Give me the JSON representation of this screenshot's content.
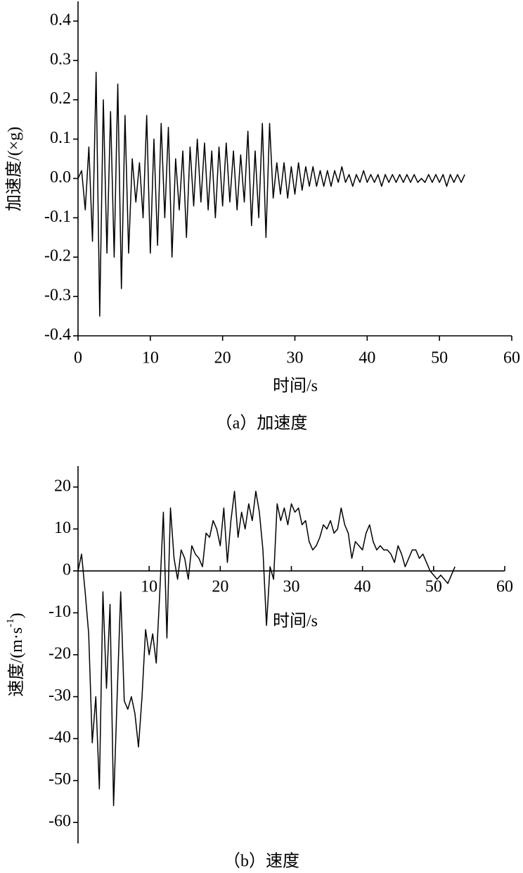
{
  "chart_data": [
    {
      "type": "line",
      "caption": "（a）加速度",
      "xlabel": "时间/s",
      "ylabel": "加速度/(×g)",
      "color": "#000000",
      "xaxis_position": "bottom",
      "xlim": [
        0,
        60
      ],
      "ylim": [
        -0.4,
        0.45
      ],
      "xticks": [
        0,
        10,
        20,
        30,
        40,
        50,
        60
      ],
      "yticks": [
        -0.4,
        -0.3,
        -0.2,
        -0.1,
        {
          "value": 0,
          "label": "0.0"
        },
        0.1,
        0.2,
        0.3,
        0.4
      ],
      "x": [
        0,
        0.5,
        1,
        1.5,
        2,
        2.5,
        3,
        3.5,
        4,
        4.5,
        5,
        5.5,
        6,
        6.5,
        7,
        7.5,
        8,
        8.5,
        9,
        9.5,
        10,
        10.5,
        11,
        11.5,
        12,
        12.5,
        13,
        13.5,
        14,
        14.5,
        15,
        15.5,
        16,
        16.5,
        17,
        17.5,
        18,
        18.5,
        19,
        19.5,
        20,
        20.5,
        21,
        21.5,
        22,
        22.5,
        23,
        23.5,
        24,
        24.5,
        25,
        25.5,
        26,
        26.5,
        27,
        27.5,
        28,
        28.5,
        29,
        29.5,
        30,
        30.5,
        31,
        31.5,
        32,
        32.5,
        33,
        33.5,
        34,
        34.5,
        35,
        35.5,
        36,
        36.5,
        37,
        37.5,
        38,
        38.5,
        39,
        39.5,
        40,
        40.5,
        41,
        41.5,
        42,
        42.5,
        43,
        43.5,
        44,
        44.5,
        45,
        45.5,
        46,
        46.5,
        47,
        47.5,
        48,
        48.5,
        49,
        49.5,
        50,
        50.5,
        51,
        51.5,
        52,
        52.5,
        53,
        53.5
      ],
      "values": [
        0,
        0.02,
        -0.08,
        0.08,
        -0.16,
        0.27,
        -0.35,
        0.2,
        -0.19,
        0.17,
        -0.2,
        0.24,
        -0.28,
        0.16,
        -0.19,
        0.05,
        -0.06,
        0.04,
        -0.1,
        0.16,
        -0.19,
        0.1,
        -0.17,
        0.14,
        -0.1,
        0.13,
        -0.2,
        0.05,
        -0.08,
        0.07,
        -0.15,
        0.08,
        -0.07,
        0.1,
        -0.06,
        0.09,
        -0.08,
        0.07,
        -0.1,
        0.08,
        -0.07,
        0.09,
        -0.06,
        0.07,
        -0.08,
        0.06,
        -0.06,
        0.12,
        -0.12,
        0.07,
        -0.1,
        0.14,
        -0.15,
        0.14,
        -0.05,
        0.04,
        -0.04,
        0.04,
        -0.05,
        0.03,
        -0.04,
        0.04,
        -0.03,
        0.03,
        -0.02,
        0.03,
        -0.02,
        0.02,
        -0.02,
        0.02,
        -0.02,
        0.02,
        -0.01,
        0.03,
        -0.01,
        0.01,
        -0.02,
        0.01,
        -0.01,
        0.02,
        -0.01,
        0.01,
        -0.01,
        0.01,
        -0.02,
        0.01,
        -0.01,
        0.01,
        -0.01,
        0.01,
        -0.01,
        0.01,
        -0.01,
        0.01,
        -0.01,
        0,
        -0.01,
        0.01,
        -0.01,
        0.01,
        -0.01,
        0.01,
        -0.02,
        0.01,
        -0.01,
        0.01,
        -0.01,
        0.01
      ]
    },
    {
      "type": "line",
      "caption": "（b）速度",
      "xlabel": "时间/s",
      "ylabel": {
        "text": "速度/(m·s",
        "superscript": "-1",
        "suffix": ")"
      },
      "color": "#000000",
      "xaxis_position": "zero",
      "xlim": [
        0,
        60
      ],
      "ylim": [
        -65,
        25
      ],
      "xticks": [
        10,
        20,
        30,
        40,
        50,
        60
      ],
      "yticks": [
        -60,
        -50,
        -40,
        -30,
        -20,
        -10,
        0,
        10,
        20
      ],
      "x": [
        0,
        0.5,
        1,
        1.5,
        2,
        2.5,
        3,
        3.5,
        4,
        4.5,
        5,
        5.5,
        6,
        6.5,
        7,
        7.5,
        8,
        8.5,
        9,
        9.5,
        10,
        10.5,
        11,
        11.5,
        12,
        12.5,
        13,
        13.5,
        14,
        14.5,
        15,
        15.5,
        16,
        16.5,
        17,
        17.5,
        18,
        18.5,
        19,
        19.5,
        20,
        20.5,
        21,
        21.5,
        22,
        22.5,
        23,
        23.5,
        24,
        24.5,
        25,
        25.5,
        26,
        26.5,
        27,
        27.5,
        28,
        28.5,
        29,
        29.5,
        30,
        30.5,
        31,
        31.5,
        32,
        32.5,
        33,
        33.5,
        34,
        34.5,
        35,
        35.5,
        36,
        36.5,
        37,
        37.5,
        38,
        38.5,
        39,
        39.5,
        40,
        40.5,
        41,
        41.5,
        42,
        42.5,
        43,
        43.5,
        44,
        44.5,
        45,
        45.5,
        46,
        46.5,
        47,
        47.5,
        48,
        48.5,
        49,
        49.5,
        50,
        50.5,
        51,
        51.5,
        52,
        52.5,
        53
      ],
      "values": [
        0,
        4,
        -5,
        -15,
        -41,
        -30,
        -52,
        -5,
        -28,
        -8,
        -56,
        -30,
        -5,
        -31,
        -33,
        -30,
        -34,
        -42,
        -30,
        -14,
        -20,
        -15,
        -22,
        -5,
        14,
        -16,
        15,
        3,
        -2,
        5,
        3,
        -2,
        6,
        4,
        3,
        1,
        9,
        8,
        12,
        10,
        6,
        15,
        2,
        12,
        19,
        8,
        14,
        10,
        16,
        12,
        19,
        14,
        5,
        -13,
        1,
        -2,
        16,
        12,
        15,
        11,
        16,
        14,
        15,
        11,
        12,
        7,
        5,
        6,
        8,
        11,
        10,
        12,
        9,
        10,
        15,
        11,
        9,
        3,
        7,
        6,
        5,
        9,
        11,
        7,
        5,
        6,
        5,
        5,
        4,
        2,
        6,
        4,
        1,
        3,
        5,
        5,
        3,
        4,
        2,
        0,
        -1,
        -2,
        -1,
        -2,
        -3,
        -1,
        1
      ]
    }
  ]
}
